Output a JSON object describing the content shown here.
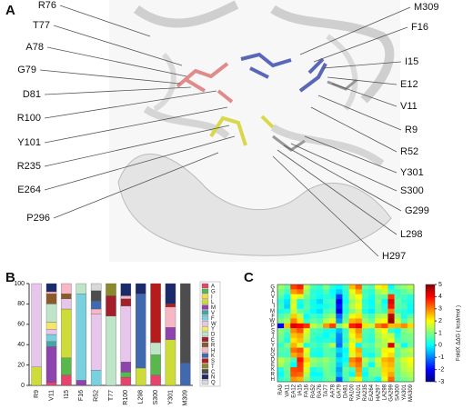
{
  "panel_labels": [
    "A",
    "B",
    "C"
  ],
  "structure": {
    "left_labels": [
      "R76",
      "T77",
      "A78",
      "G79",
      "D81",
      "R100",
      "Y101",
      "R235",
      "E264",
      "P296"
    ],
    "right_labels": [
      "M309",
      "F16",
      "I15",
      "E12",
      "V11",
      "R9",
      "R52",
      "Y301",
      "S300",
      "G299",
      "L298",
      "H297"
    ]
  },
  "chart_data": [
    {
      "type": "bar",
      "stacked": true,
      "categories": [
        "R9",
        "V11",
        "I15",
        "F16",
        "R52",
        "T77",
        "R100",
        "L298",
        "S300",
        "Y301",
        "M309"
      ],
      "series": [
        {
          "name": "A",
          "color": "#e6436d",
          "values": [
            0,
            3,
            10,
            0,
            0,
            0,
            8,
            0,
            10,
            0,
            0
          ]
        },
        {
          "name": "G",
          "color": "#58b84d",
          "values": [
            0,
            0,
            17,
            0,
            0,
            0,
            5,
            0,
            20,
            0,
            0
          ]
        },
        {
          "name": "I",
          "color": "#f2d94e",
          "values": [
            0,
            0,
            0,
            0,
            0,
            0,
            0,
            0,
            0,
            0,
            0
          ]
        },
        {
          "name": "L",
          "color": "#cddc39",
          "values": [
            18,
            0,
            48,
            0,
            0,
            0,
            0,
            17,
            0,
            45,
            0
          ]
        },
        {
          "name": "M",
          "color": "#8e44ad",
          "values": [
            0,
            35,
            0,
            5,
            0,
            0,
            10,
            0,
            0,
            12,
            0
          ]
        },
        {
          "name": "V",
          "color": "#4aa3a3",
          "values": [
            0,
            5,
            0,
            0,
            0,
            0,
            0,
            0,
            0,
            0,
            0
          ]
        },
        {
          "name": "F",
          "color": "#79d0df",
          "values": [
            0,
            7,
            0,
            85,
            15,
            0,
            0,
            0,
            0,
            0,
            0
          ]
        },
        {
          "name": "W",
          "color": "#e6c6ea",
          "values": [
            82,
            5,
            10,
            0,
            55,
            0,
            55,
            0,
            0,
            0,
            0
          ]
        },
        {
          "name": "Y",
          "color": "#f5e66a",
          "values": [
            0,
            7,
            0,
            0,
            0,
            0,
            0,
            0,
            0,
            0,
            0
          ]
        },
        {
          "name": "D",
          "color": "#bfe5c8",
          "values": [
            0,
            18,
            0,
            10,
            0,
            68,
            0,
            0,
            12,
            0,
            0
          ]
        },
        {
          "name": "E",
          "color": "#a3202a",
          "values": [
            0,
            0,
            0,
            0,
            0,
            20,
            7,
            0,
            0,
            0,
            0
          ]
        },
        {
          "name": "R",
          "color": "#8b5a2b",
          "values": [
            0,
            10,
            5,
            0,
            0,
            0,
            0,
            0,
            0,
            0,
            0
          ]
        },
        {
          "name": "H",
          "color": "#f7b8c6",
          "values": [
            0,
            2,
            10,
            0,
            5,
            0,
            3,
            0,
            0,
            20,
            0
          ]
        },
        {
          "name": "K",
          "color": "#4169b0",
          "values": [
            0,
            0,
            0,
            0,
            8,
            0,
            0,
            73,
            0,
            0,
            22
          ]
        },
        {
          "name": "S",
          "color": "#b71c1c",
          "values": [
            0,
            0,
            0,
            0,
            0,
            0,
            0,
            0,
            58,
            3,
            0
          ]
        },
        {
          "name": "T",
          "color": "#8a8a2c",
          "values": [
            0,
            0,
            0,
            0,
            0,
            12,
            0,
            0,
            0,
            0,
            0
          ]
        },
        {
          "name": "C",
          "color": "#4d4d4d",
          "values": [
            0,
            0,
            0,
            0,
            10,
            0,
            0,
            0,
            0,
            0,
            78
          ]
        },
        {
          "name": "N",
          "color": "#1b2a6b",
          "values": [
            0,
            8,
            0,
            0,
            0,
            0,
            12,
            10,
            0,
            20,
            0
          ]
        },
        {
          "name": "Q",
          "color": "#d9d9d9",
          "values": [
            0,
            0,
            0,
            0,
            7,
            0,
            0,
            0,
            0,
            0,
            0
          ]
        }
      ],
      "ylim": [
        0,
        100
      ],
      "yticks": [
        0,
        20,
        40,
        60,
        80,
        100
      ],
      "legend": "right"
    },
    {
      "type": "heatmap",
      "x": [
        "RA9",
        "VA11",
        "EA12",
        "IA15",
        "FA16",
        "RA52",
        "RA76",
        "TA77",
        "AA78",
        "GA79",
        "DA81",
        "RA100",
        "YA101",
        "RA235",
        "EA264",
        "HA297",
        "LA298",
        "GA299",
        "SA300",
        "YA301",
        "MA309"
      ],
      "y": [
        "G",
        "A",
        "V",
        "L",
        "I",
        "M",
        "F",
        "W",
        "P",
        "S",
        "T",
        "C",
        "Y",
        "N",
        "Q",
        "D",
        "E",
        "K",
        "R",
        "H"
      ],
      "values": [
        [
          1.2,
          0.8,
          3.5,
          3.8,
          1.5,
          0.6,
          0.4,
          1.0,
          0.3,
          0.0,
          0.5,
          2.5,
          3.2,
          0.8,
          0.6,
          1.8,
          2.2,
          0.0,
          0.9,
          1.1,
          1.4
        ],
        [
          0.9,
          0.5,
          2.8,
          3.1,
          1.2,
          0.3,
          0.2,
          0.6,
          0.0,
          -0.4,
          0.3,
          1.8,
          2.6,
          0.5,
          0.3,
          1.2,
          1.6,
          0.5,
          0.4,
          0.8,
          1.0
        ],
        [
          0.7,
          0.0,
          2.0,
          1.8,
          0.9,
          0.4,
          0.1,
          0.3,
          0.2,
          -1.5,
          0.2,
          1.5,
          2.0,
          0.6,
          0.2,
          0.9,
          0.8,
          3.6,
          0.6,
          0.5,
          0.3
        ],
        [
          0.3,
          -0.2,
          1.6,
          0.2,
          0.6,
          0.1,
          -0.3,
          0.4,
          0.5,
          -2.0,
          0.1,
          1.2,
          1.7,
          0.3,
          0.0,
          1.0,
          0.0,
          4.2,
          0.8,
          0.4,
          0.2
        ],
        [
          0.5,
          -0.3,
          1.8,
          0.0,
          0.7,
          0.2,
          0.0,
          0.2,
          0.4,
          -1.8,
          0.3,
          1.4,
          1.9,
          0.4,
          0.1,
          0.8,
          0.3,
          3.9,
          0.7,
          0.6,
          0.1
        ],
        [
          0.2,
          0.3,
          1.5,
          0.8,
          0.5,
          0.0,
          -0.2,
          0.5,
          0.6,
          -2.2,
          0.2,
          1.0,
          1.5,
          0.2,
          -0.1,
          0.7,
          0.5,
          3.0,
          0.5,
          0.3,
          0.0
        ],
        [
          0.6,
          0.9,
          2.4,
          1.5,
          0.0,
          0.5,
          0.3,
          0.9,
          1.2,
          -1.2,
          0.6,
          1.9,
          2.2,
          0.9,
          0.5,
          1.3,
          1.4,
          4.5,
          1.1,
          0.2,
          0.7
        ],
        [
          1.0,
          1.3,
          3.0,
          2.2,
          0.4,
          0.8,
          0.6,
          1.4,
          1.8,
          -0.8,
          0.9,
          2.6,
          2.8,
          1.2,
          0.8,
          1.7,
          2.0,
          4.8,
          1.6,
          0.6,
          1.2
        ],
        [
          -2.0,
          2.5,
          4.2,
          4.0,
          3.6,
          1.5,
          1.1,
          2.8,
          3.5,
          1.0,
          1.7,
          3.8,
          4.1,
          2.2,
          1.5,
          3.0,
          3.4,
          2.5,
          2.6,
          2.9,
          2.3
        ],
        [
          1.1,
          0.7,
          2.9,
          3.3,
          1.8,
          0.6,
          0.5,
          0.2,
          0.1,
          -0.5,
          0.4,
          2.2,
          2.9,
          0.7,
          0.5,
          1.5,
          2.0,
          0.4,
          0.0,
          1.0,
          1.2
        ],
        [
          0.9,
          0.4,
          2.5,
          2.7,
          1.5,
          0.5,
          0.3,
          0.0,
          0.4,
          -0.9,
          0.5,
          1.9,
          2.6,
          0.6,
          0.4,
          1.3,
          1.7,
          1.5,
          0.3,
          0.9,
          1.0
        ],
        [
          0.8,
          0.2,
          2.2,
          2.5,
          1.3,
          0.4,
          0.2,
          0.3,
          0.2,
          -1.0,
          0.3,
          1.6,
          2.3,
          0.5,
          0.3,
          1.1,
          1.5,
          1.8,
          0.5,
          0.8,
          0.9
        ],
        [
          0.4,
          1.0,
          2.6,
          1.7,
          0.2,
          0.6,
          0.4,
          0.8,
          1.4,
          -1.1,
          0.7,
          2.0,
          0.0,
          0.8,
          0.6,
          1.2,
          1.3,
          4.3,
          1.2,
          0.0,
          0.8
        ],
        [
          0.7,
          0.6,
          3.1,
          3.4,
          1.9,
          0.3,
          0.2,
          0.7,
          0.5,
          -0.3,
          0.0,
          2.1,
          2.7,
          0.4,
          0.5,
          0.9,
          2.1,
          2.0,
          0.8,
          1.3,
          1.5
        ],
        [
          0.5,
          0.5,
          2.7,
          3.0,
          1.6,
          0.2,
          0.1,
          0.6,
          0.6,
          -0.6,
          0.2,
          1.7,
          2.5,
          0.3,
          0.1,
          0.8,
          1.9,
          2.3,
          0.7,
          1.1,
          1.3
        ],
        [
          1.5,
          1.1,
          0.5,
          3.9,
          2.4,
          1.2,
          1.0,
          1.2,
          0.8,
          -0.2,
          0.0,
          3.0,
          3.4,
          1.4,
          0.8,
          1.6,
          2.6,
          2.8,
          1.1,
          1.7,
          2.0
        ],
        [
          1.3,
          0.9,
          0.0,
          3.6,
          2.1,
          1.0,
          0.8,
          1.0,
          0.7,
          -0.4,
          0.4,
          2.7,
          3.1,
          1.1,
          0.0,
          1.4,
          2.4,
          2.6,
          1.0,
          1.5,
          1.8
        ],
        [
          0.3,
          0.8,
          3.4,
          3.5,
          1.7,
          0.2,
          0.4,
          0.9,
          0.6,
          -0.7,
          0.8,
          0.5,
          2.8,
          0.3,
          1.0,
          1.0,
          2.3,
          2.4,
          0.9,
          1.4,
          1.6
        ],
        [
          0.0,
          0.7,
          3.3,
          3.2,
          1.4,
          0.0,
          0.0,
          0.8,
          0.7,
          -0.5,
          0.7,
          0.0,
          2.6,
          0.0,
          0.9,
          0.9,
          2.2,
          2.7,
          0.8,
          1.2,
          1.4
        ],
        [
          0.4,
          0.6,
          2.8,
          2.6,
          1.0,
          0.3,
          0.3,
          0.7,
          0.9,
          -1.3,
          0.5,
          1.3,
          2.1,
          0.4,
          0.6,
          0.0,
          1.8,
          3.2,
          0.7,
          0.9,
          1.1
        ]
      ],
      "zlim": [
        -3,
        5
      ],
      "zticks": [
        -3,
        -2,
        -1,
        0,
        1,
        2,
        3,
        4,
        5
      ],
      "colorbar_label": "FoldX ΔΔG ( kcal/mol )",
      "colorscale": [
        "#00007f",
        "#0000ff",
        "#007fff",
        "#00ffff",
        "#7fff7f",
        "#ffff00",
        "#ff7f00",
        "#ff0000",
        "#7f0000"
      ]
    }
  ]
}
